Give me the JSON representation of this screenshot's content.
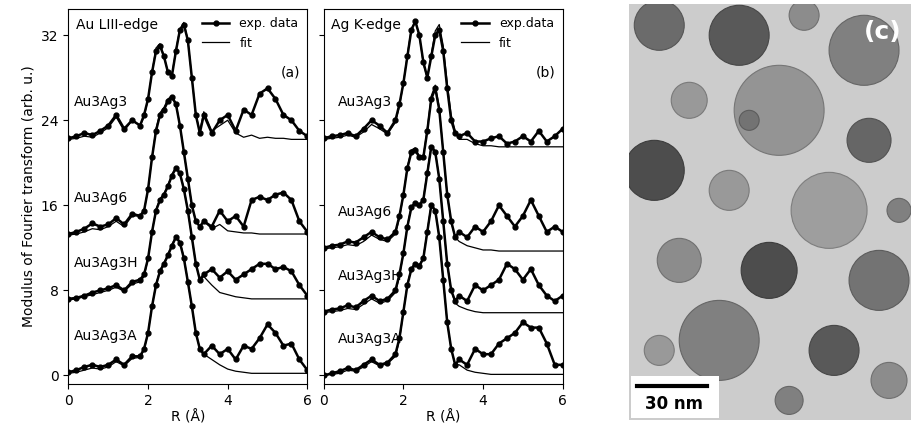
{
  "chart_data": [
    {
      "type": "line",
      "title": "Au LIII-edge",
      "panel_label": "(a)",
      "x_label": "R (Å)",
      "y_label": "Modulus of Fourier transform (arb. u.)",
      "xlim": [
        0,
        6
      ],
      "xticks": [
        0,
        2,
        4,
        6
      ],
      "ylim": [
        -0.8,
        34.5
      ],
      "yticks": [
        0,
        8,
        16,
        24,
        32
      ],
      "legend": "upper right",
      "x": [
        0,
        0.2,
        0.4,
        0.6,
        0.8,
        1.0,
        1.2,
        1.4,
        1.6,
        1.8,
        1.9,
        2.0,
        2.1,
        2.2,
        2.3,
        2.4,
        2.5,
        2.6,
        2.7,
        2.8,
        2.9,
        3.0,
        3.1,
        3.2,
        3.3,
        3.4,
        3.6,
        3.8,
        4.0,
        4.2,
        4.4,
        4.6,
        4.8,
        5.0,
        5.2,
        5.4,
        5.6,
        5.8,
        6.0
      ],
      "series": [
        {
          "name": "exp. data",
          "sample": "Au3Ag3",
          "color": "#000000",
          "marker": "circle",
          "line_style": "solid",
          "values": [
            22.3,
            22.5,
            22.8,
            22.6,
            23,
            23.5,
            24.5,
            23.2,
            24,
            23.5,
            24.5,
            26,
            28.5,
            30.5,
            31,
            30,
            28.5,
            28.2,
            30.5,
            32.5,
            33,
            31.5,
            28,
            24.5,
            22.8,
            24.5,
            22.8,
            24,
            24.5,
            23,
            25,
            24.5,
            26.5,
            27,
            26,
            24.5,
            24,
            23,
            22.5
          ]
        },
        {
          "name": "fit",
          "sample": "Au3Ag3",
          "color": "#000000",
          "marker": "none",
          "line_style": "solid",
          "values": [
            22.2,
            22.3,
            22.5,
            22.4,
            22.8,
            23.3,
            24.3,
            23,
            24,
            23.5,
            24.3,
            26,
            28.5,
            30.8,
            31.2,
            30,
            28.5,
            28.3,
            30.6,
            32.6,
            33.2,
            31.5,
            28,
            24.5,
            23,
            24.8,
            23,
            23.5,
            24,
            22.8,
            22.4,
            22.6,
            22.3,
            22.4,
            22.3,
            22.3,
            22.2,
            22.2,
            22.2
          ]
        },
        {
          "name": "exp. data",
          "sample": "Au3Ag6",
          "color": "#000000",
          "marker": "circle",
          "line_style": "solid",
          "values": [
            13.3,
            13.5,
            13.8,
            14.3,
            14.0,
            14.2,
            14.8,
            14.2,
            15.2,
            15.0,
            15.5,
            17.5,
            20.5,
            23.0,
            24.5,
            25.0,
            25.8,
            26.2,
            25.5,
            23.5,
            21.0,
            18.5,
            16.0,
            14.5,
            14.0,
            14.5,
            14.0,
            15.5,
            14.5,
            15.0,
            14.0,
            16.5,
            16.8,
            16.5,
            17.0,
            17.2,
            16.5,
            14.5,
            13.5
          ]
        },
        {
          "name": "fit",
          "sample": "Au3Ag6",
          "color": "#000000",
          "marker": "none",
          "line_style": "solid",
          "values": [
            13.2,
            13.3,
            13.5,
            13.8,
            13.7,
            14.0,
            14.5,
            14.0,
            15.0,
            15.0,
            15.5,
            17.5,
            20.5,
            23.2,
            24.7,
            25.2,
            26.0,
            26.3,
            25.6,
            23.5,
            21.0,
            18.5,
            16.0,
            14.5,
            14.0,
            14.5,
            13.8,
            14.2,
            13.6,
            13.5,
            13.4,
            13.4,
            13.3,
            13.3,
            13.3,
            13.3,
            13.3,
            13.3,
            13.3
          ]
        },
        {
          "name": "exp. data",
          "sample": "Au3Ag3H",
          "color": "#000000",
          "marker": "circle",
          "line_style": "solid",
          "values": [
            7.2,
            7.3,
            7.5,
            7.8,
            8.0,
            8.2,
            8.5,
            8.0,
            8.8,
            9.0,
            9.5,
            11.0,
            13.5,
            15.5,
            16.5,
            17.0,
            17.8,
            18.8,
            19.5,
            19.0,
            17.5,
            15.5,
            13.0,
            10.5,
            9.0,
            9.5,
            10.0,
            9.2,
            9.8,
            9.0,
            9.5,
            10.0,
            10.5,
            10.5,
            10.0,
            10.2,
            9.8,
            8.5,
            7.5
          ]
        },
        {
          "name": "fit",
          "sample": "Au3Ag3H",
          "color": "#000000",
          "marker": "none",
          "line_style": "solid",
          "values": [
            7.1,
            7.2,
            7.4,
            7.6,
            7.8,
            8.0,
            8.3,
            7.9,
            8.6,
            8.8,
            9.3,
            11.0,
            13.5,
            15.6,
            16.6,
            17.1,
            17.9,
            18.9,
            19.6,
            19.1,
            17.6,
            15.5,
            13.0,
            10.5,
            9.0,
            9.3,
            8.5,
            7.8,
            7.6,
            7.4,
            7.3,
            7.2,
            7.2,
            7.2,
            7.2,
            7.2,
            7.2,
            7.2,
            7.2
          ]
        },
        {
          "name": "exp. data",
          "sample": "Au3Ag3A",
          "color": "#000000",
          "marker": "circle",
          "line_style": "solid",
          "values": [
            0.3,
            0.5,
            0.8,
            1.0,
            0.8,
            1.0,
            1.5,
            1.0,
            1.8,
            1.8,
            2.5,
            4.0,
            6.5,
            8.5,
            9.8,
            10.5,
            11.3,
            12.2,
            13.0,
            12.5,
            11.0,
            8.8,
            6.5,
            4.0,
            2.5,
            2.0,
            2.8,
            2.0,
            2.5,
            1.5,
            2.8,
            2.5,
            3.5,
            4.8,
            4.0,
            2.8,
            3.0,
            1.5,
            0.5
          ]
        },
        {
          "name": "fit",
          "sample": "Au3Ag3A",
          "color": "#000000",
          "marker": "none",
          "line_style": "solid",
          "values": [
            0.2,
            0.3,
            0.5,
            0.7,
            0.6,
            0.8,
            1.3,
            0.9,
            1.6,
            1.7,
            2.4,
            4.0,
            6.5,
            8.6,
            9.9,
            10.6,
            11.4,
            12.3,
            13.1,
            12.6,
            11.1,
            8.8,
            6.5,
            4.0,
            2.5,
            2.0,
            1.5,
            1.0,
            0.6,
            0.4,
            0.3,
            0.2,
            0.2,
            0.2,
            0.2,
            0.2,
            0.2,
            0.2,
            0.2
          ]
        }
      ]
    },
    {
      "type": "line",
      "title": "Ag K-edge",
      "panel_label": "(b)",
      "x_label": "R (Å)",
      "xlim": [
        0,
        6
      ],
      "xticks": [
        0,
        2,
        4,
        6
      ],
      "ylim": [
        -0.8,
        34.5
      ],
      "yticks": [
        0,
        8,
        16,
        24,
        32
      ],
      "tick_labels": "x",
      "legend": "upper right",
      "x": [
        0,
        0.2,
        0.4,
        0.6,
        0.8,
        1.0,
        1.2,
        1.4,
        1.6,
        1.8,
        1.9,
        2.0,
        2.1,
        2.2,
        2.3,
        2.4,
        2.5,
        2.6,
        2.7,
        2.8,
        2.9,
        3.0,
        3.1,
        3.2,
        3.3,
        3.4,
        3.6,
        3.8,
        4.0,
        4.2,
        4.4,
        4.6,
        4.8,
        5.0,
        5.2,
        5.4,
        5.6,
        5.8,
        6.0
      ],
      "series": [
        {
          "name": "exp.data",
          "sample": "Au3Ag3",
          "color": "#000000",
          "marker": "circle",
          "line_style": "solid",
          "values": [
            22.3,
            22.5,
            22.6,
            22.8,
            22.5,
            23.2,
            24.0,
            23.5,
            22.8,
            24.0,
            25.5,
            27.5,
            30.0,
            32.5,
            33.3,
            32.0,
            29.5,
            28.0,
            30.0,
            32.0,
            32.5,
            30.5,
            27.0,
            24.0,
            22.8,
            22.5,
            22.8,
            22.0,
            22.0,
            22.3,
            22.5,
            21.8,
            22.0,
            22.5,
            22.0,
            23.0,
            22.0,
            22.5,
            23.2
          ]
        },
        {
          "name": "fit",
          "sample": "Au3Ag3",
          "color": "#000000",
          "marker": "none",
          "line_style": "solid",
          "values": [
            22.2,
            22.3,
            22.4,
            22.6,
            22.4,
            22.9,
            23.6,
            23.2,
            22.7,
            23.8,
            25.3,
            27.5,
            30.2,
            32.6,
            33.3,
            32.0,
            29.3,
            28.0,
            30.2,
            32.4,
            33.0,
            31.0,
            27.5,
            24.5,
            23.0,
            22.2,
            22.2,
            21.8,
            21.6,
            21.6,
            21.5,
            21.5,
            21.5,
            21.5,
            21.5,
            21.5,
            21.5,
            21.5,
            21.5
          ]
        },
        {
          "name": "exp.data",
          "sample": "Au3Ag6",
          "color": "#000000",
          "marker": "circle",
          "line_style": "solid",
          "values": [
            12.0,
            12.2,
            12.3,
            12.6,
            12.5,
            13.0,
            13.5,
            13.0,
            12.8,
            13.5,
            15.0,
            17.0,
            19.5,
            21.0,
            21.2,
            20.5,
            20.5,
            23.0,
            26.0,
            27.0,
            25.0,
            21.0,
            17.0,
            14.5,
            13.0,
            13.5,
            13.0,
            14.0,
            13.5,
            14.5,
            16.0,
            15.0,
            14.0,
            15.0,
            16.5,
            15.0,
            13.5,
            14.0,
            13.5
          ]
        },
        {
          "name": "fit",
          "sample": "Au3Ag6",
          "color": "#000000",
          "marker": "none",
          "line_style": "solid",
          "values": [
            11.9,
            12.0,
            12.1,
            12.3,
            12.2,
            12.6,
            13.2,
            12.8,
            12.6,
            13.3,
            14.8,
            17.0,
            19.6,
            21.2,
            21.4,
            20.6,
            20.6,
            23.2,
            26.3,
            27.3,
            25.2,
            21.0,
            17.0,
            14.4,
            13.0,
            12.6,
            12.2,
            12.0,
            11.8,
            11.8,
            11.7,
            11.7,
            11.7,
            11.7,
            11.7,
            11.7,
            11.7,
            11.7,
            11.7
          ]
        },
        {
          "name": "exp.data",
          "sample": "Au3Ag3H",
          "color": "#000000",
          "marker": "circle",
          "line_style": "solid",
          "values": [
            6.0,
            6.2,
            6.3,
            6.6,
            6.4,
            7.0,
            7.5,
            7.0,
            7.2,
            8.0,
            9.5,
            11.5,
            14.0,
            15.8,
            16.2,
            16.0,
            16.5,
            19.0,
            21.5,
            21.0,
            18.5,
            14.5,
            10.5,
            8.0,
            7.0,
            7.5,
            7.0,
            8.5,
            8.0,
            8.5,
            9.0,
            10.5,
            10.0,
            9.0,
            10.0,
            8.5,
            7.5,
            7.0,
            7.5
          ]
        },
        {
          "name": "fit",
          "sample": "Au3Ag3H",
          "color": "#000000",
          "marker": "none",
          "line_style": "solid",
          "values": [
            5.9,
            6.0,
            6.1,
            6.3,
            6.2,
            6.7,
            7.2,
            6.8,
            7.0,
            7.8,
            9.3,
            11.5,
            14.1,
            15.9,
            16.3,
            16.1,
            16.6,
            19.2,
            21.6,
            21.1,
            18.5,
            14.5,
            10.5,
            8.0,
            6.8,
            6.5,
            6.2,
            6.0,
            5.9,
            5.9,
            5.9,
            5.9,
            5.9,
            5.9,
            5.9,
            5.9,
            5.9,
            5.9,
            5.9
          ]
        },
        {
          "name": "exp.data",
          "sample": "Au3Ag3A",
          "color": "#000000",
          "marker": "circle",
          "line_style": "solid",
          "values": [
            0.0,
            0.2,
            0.4,
            0.7,
            0.5,
            1.0,
            1.5,
            1.0,
            1.2,
            2.0,
            3.5,
            6.0,
            8.5,
            10.0,
            10.5,
            10.3,
            11.0,
            13.5,
            16.0,
            15.5,
            13.0,
            9.0,
            5.0,
            2.5,
            1.0,
            1.5,
            1.0,
            2.5,
            2.0,
            2.0,
            3.0,
            3.5,
            4.0,
            5.0,
            4.5,
            4.5,
            3.0,
            1.0,
            1.0
          ]
        },
        {
          "name": "fit",
          "sample": "Au3Ag3A",
          "color": "#000000",
          "marker": "none",
          "line_style": "solid",
          "values": [
            0.0,
            0.1,
            0.2,
            0.5,
            0.4,
            0.8,
            1.3,
            0.9,
            1.1,
            1.8,
            3.3,
            6.0,
            8.6,
            10.1,
            10.6,
            10.4,
            11.1,
            13.6,
            16.1,
            15.6,
            13.0,
            9.0,
            5.0,
            2.5,
            1.0,
            1.0,
            0.5,
            0.3,
            0.2,
            0.1,
            0.1,
            0.1,
            0.1,
            0.1,
            0.1,
            0.1,
            0.1,
            0.1,
            0.1
          ]
        }
      ]
    }
  ],
  "image": {
    "type": "micrograph",
    "panel_label": "(c)",
    "scale_bar": "30 nm"
  }
}
